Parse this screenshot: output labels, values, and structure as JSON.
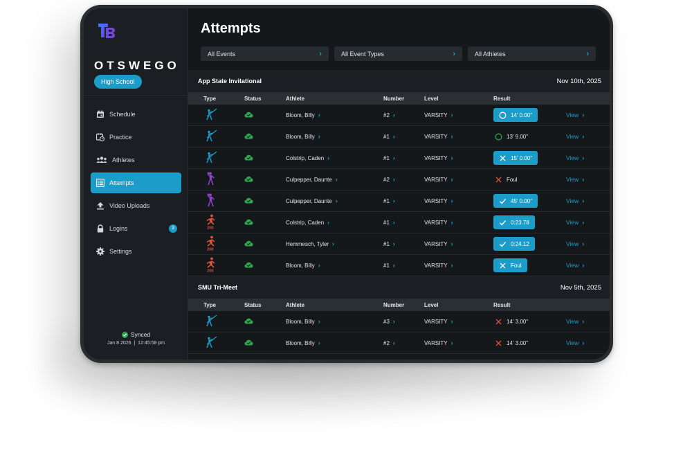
{
  "app": {
    "brand": "OTSWEGO",
    "school_type": "High School",
    "logo_letters": "TB",
    "accent_color": "#1c9cc9",
    "success_color": "#2ea54f",
    "fail_color": "#e0533e"
  },
  "nav": [
    {
      "label": "Schedule",
      "icon": "calendar-icon"
    },
    {
      "label": "Practice",
      "icon": "calendar-clock-icon"
    },
    {
      "label": "Athletes",
      "icon": "people-icon"
    },
    {
      "label": "Attempts",
      "icon": "list-icon",
      "active": true
    },
    {
      "label": "Video Uploads",
      "icon": "upload-icon"
    },
    {
      "label": "Logins",
      "icon": "lock-icon",
      "badge": "3"
    },
    {
      "label": "Settings",
      "icon": "gear-icon"
    }
  ],
  "sync": {
    "status": "Synced",
    "date": "Jan 8 2026",
    "time": "12:45:58 pm"
  },
  "page": {
    "title": "Attempts"
  },
  "filters": [
    {
      "label": "All Events"
    },
    {
      "label": "All Event Types"
    },
    {
      "label": "All Athletes"
    }
  ],
  "columns": {
    "type": "Type",
    "status": "Status",
    "athlete": "Athlete",
    "number": "Number",
    "level": "Level",
    "result": "Result"
  },
  "sections": [
    {
      "name": "App State Invitational",
      "date": "Nov 10th, 2025",
      "rows": [
        {
          "type": "javelin-icon",
          "athlete": "Bloom, Billy",
          "number": "#2",
          "level": "VARSITY",
          "result": "14' 0.00\"",
          "mark": "circle",
          "boxed": true,
          "view": "View"
        },
        {
          "type": "javelin-icon",
          "athlete": "Bloom, Billy",
          "number": "#1",
          "level": "VARSITY",
          "result": "13' 9.00\"",
          "mark": "circle-green",
          "boxed": false,
          "view": "View"
        },
        {
          "type": "javelin-icon",
          "athlete": "Colstrip, Caden",
          "number": "#1",
          "level": "VARSITY",
          "result": "15' 0.00\"",
          "mark": "x",
          "boxed": true,
          "view": "View"
        },
        {
          "type": "shot-put-icon",
          "athlete": "Culpepper, Daunte",
          "number": "#2",
          "level": "VARSITY",
          "result": "Foul",
          "mark": "x-red",
          "boxed": false,
          "view": "View"
        },
        {
          "type": "shot-put-icon",
          "athlete": "Culpepper, Daunte",
          "number": "#1",
          "level": "VARSITY",
          "result": "45' 0.00\"",
          "mark": "check",
          "boxed": true,
          "view": "View"
        },
        {
          "type": "sprint-200-icon",
          "athlete": "Colstrip, Caden",
          "number": "#1",
          "level": "VARSITY",
          "result": "0:23.78",
          "mark": "check",
          "boxed": true,
          "view": "View"
        },
        {
          "type": "sprint-200-icon",
          "athlete": "Hemmesch, Tyler",
          "number": "#1",
          "level": "VARSITY",
          "result": "0:24.12",
          "mark": "check",
          "boxed": true,
          "view": "View"
        },
        {
          "type": "sprint-200-icon",
          "athlete": "Bloom, Billy",
          "number": "#1",
          "level": "VARSITY",
          "result": "Foul",
          "mark": "x",
          "boxed": true,
          "view": "View"
        }
      ]
    },
    {
      "name": "SMU Tri-Meet",
      "date": "Nov 5th, 2025",
      "rows": [
        {
          "type": "javelin-icon",
          "athlete": "Bloom, Billy",
          "number": "#3",
          "level": "VARSITY",
          "result": "14' 3.00\"",
          "mark": "x-red",
          "boxed": false,
          "view": "View"
        },
        {
          "type": "javelin-icon",
          "athlete": "Bloom, Billy",
          "number": "#2",
          "level": "VARSITY",
          "result": "14' 3.00\"",
          "mark": "x-red",
          "boxed": false,
          "view": "View"
        }
      ]
    }
  ],
  "sprint_label": "200"
}
